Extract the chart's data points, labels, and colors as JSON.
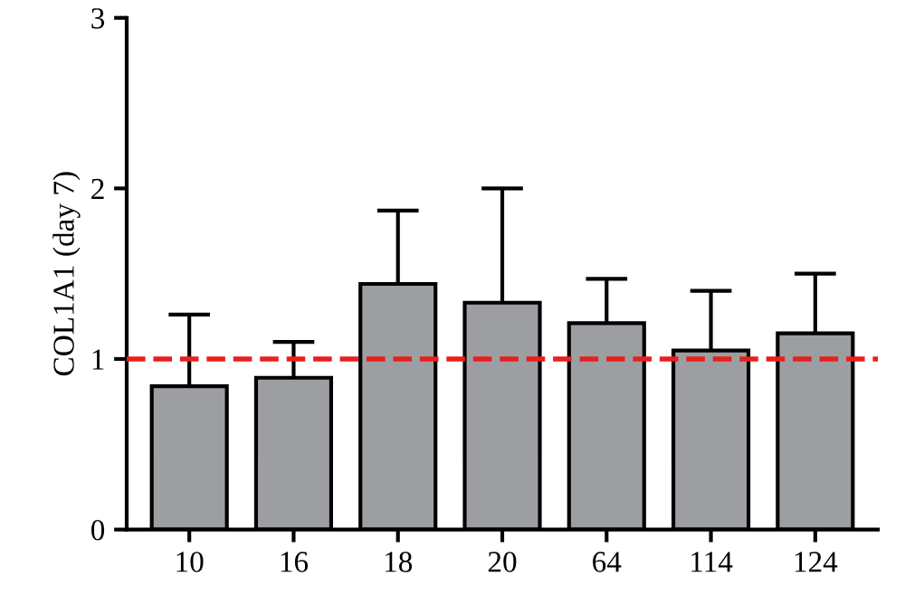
{
  "chart_data": {
    "type": "bar",
    "ylabel": "COL1A1 (day 7)",
    "categories": [
      "10",
      "16",
      "18",
      "20",
      "64",
      "114",
      "124"
    ],
    "values": [
      0.84,
      0.89,
      1.44,
      1.33,
      1.21,
      1.05,
      1.15
    ],
    "errors": [
      [
        0.84,
        1.26
      ],
      [
        0.89,
        1.1
      ],
      [
        1.44,
        1.87
      ],
      [
        1.33,
        2.0
      ],
      [
        1.21,
        1.47
      ],
      [
        1.05,
        1.4
      ],
      [
        1.15,
        1.5
      ]
    ],
    "color": "#9d9ea2",
    "ylim": [
      0,
      3
    ],
    "yticks": [
      0,
      1,
      2,
      3
    ],
    "ref_lines": [
      {
        "axis": "y",
        "value": 1,
        "label": null,
        "color": "#e8201c",
        "line_style": "dashed"
      }
    ],
    "grid": false,
    "legend": false
  }
}
